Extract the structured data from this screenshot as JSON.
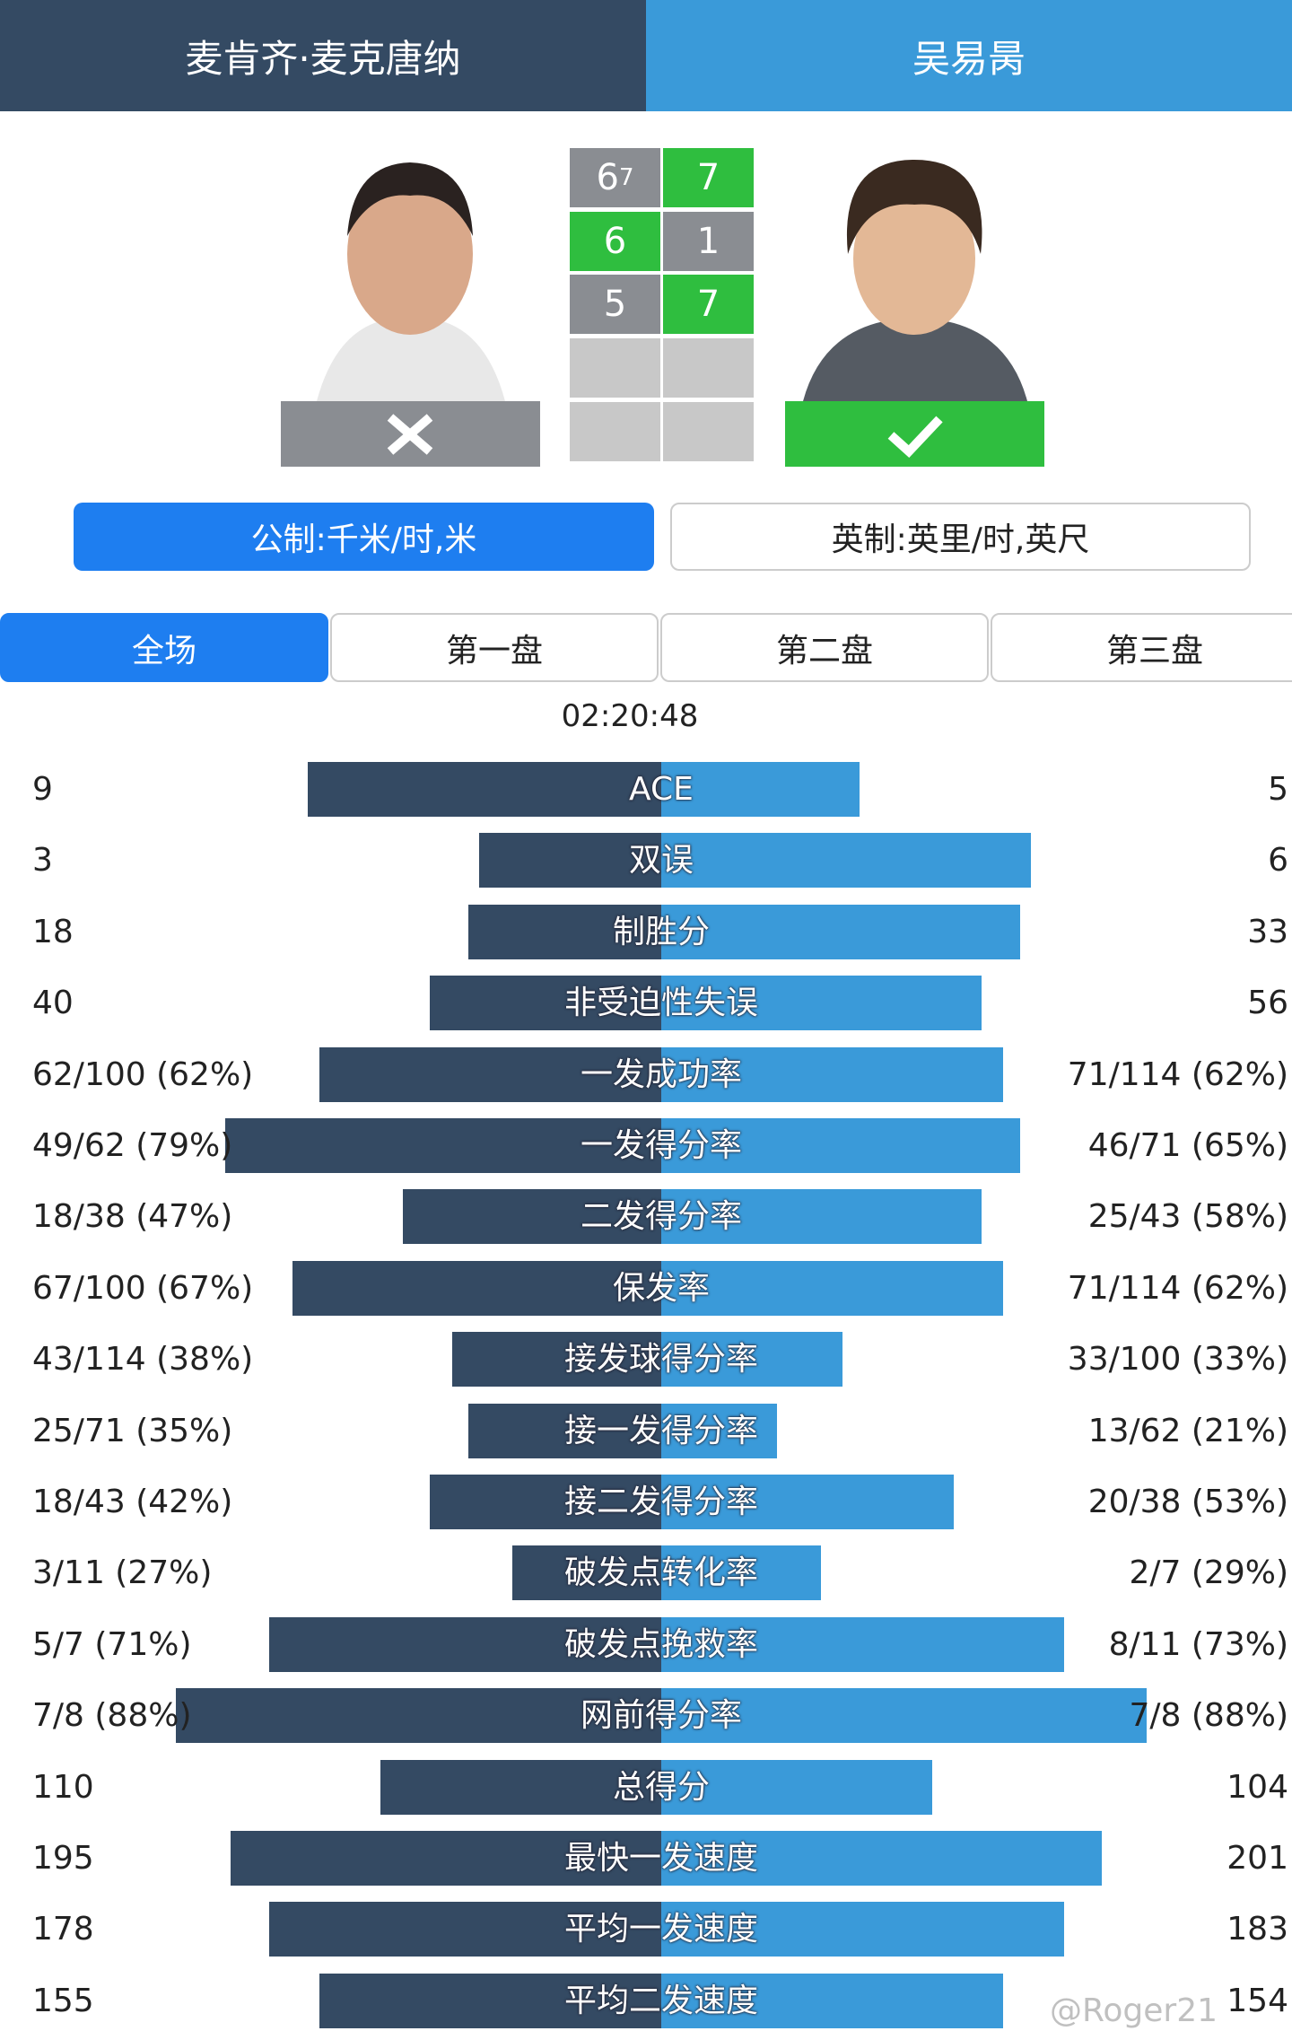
{
  "header": {
    "player_left": "麦肯齐·麦克唐纳",
    "player_right": "吴易昺"
  },
  "score": {
    "sets": [
      {
        "left": "6",
        "left_tiebreak": "7",
        "right": "7",
        "winner": "right"
      },
      {
        "left": "6",
        "right": "1",
        "winner": "left"
      },
      {
        "left": "5",
        "right": "7",
        "winner": "right"
      }
    ]
  },
  "units": {
    "metric": "公制:千米/时,米",
    "imperial": "英制:英里/时,英尺",
    "selected": "metric"
  },
  "tabs": {
    "items": [
      "全场",
      "第一盘",
      "第二盘",
      "第三盘"
    ],
    "selected": 0
  },
  "duration": "02:20:48",
  "stats": [
    {
      "left": "9",
      "label": "ACE",
      "right": "5"
    },
    {
      "left": "3",
      "label": "双误",
      "right": "6"
    },
    {
      "left": "18",
      "label": "制胜分",
      "right": "33"
    },
    {
      "left": "40",
      "label": "非受迫性失误",
      "right": "56"
    },
    {
      "left": "62/100 (62%)",
      "label": "一发成功率",
      "right": "71/114 (62%)"
    },
    {
      "left": "49/62 (79%)",
      "label": "一发得分率",
      "right": "46/71 (65%)"
    },
    {
      "left": "18/38 (47%)",
      "label": "二发得分率",
      "right": "25/43 (58%)"
    },
    {
      "left": "67/100 (67%)",
      "label": "保发率",
      "right": "71/114 (62%)"
    },
    {
      "left": "43/114 (38%)",
      "label": "接发球得分率",
      "right": "33/100 (33%)"
    },
    {
      "left": "25/71 (35%)",
      "label": "接一发得分率",
      "right": "13/62 (21%)"
    },
    {
      "left": "18/43 (42%)",
      "label": "接二发得分率",
      "right": "20/38 (53%)"
    },
    {
      "left": "3/11 (27%)",
      "label": "破发点转化率",
      "right": "2/7 (29%)"
    },
    {
      "left": "5/7 (71%)",
      "label": "破发点挽救率",
      "right": "8/11 (73%)"
    },
    {
      "left": "7/8 (88%)",
      "label": "网前得分率",
      "right": "7/8 (88%)"
    },
    {
      "left": "110",
      "label": "总得分",
      "right": "104"
    },
    {
      "left": "195",
      "label": "最快一发速度",
      "right": "201"
    },
    {
      "left": "178",
      "label": "平均一发速度",
      "right": "183"
    },
    {
      "left": "155",
      "label": "平均二发速度",
      "right": "154"
    }
  ],
  "watermark": "@Roger21"
}
